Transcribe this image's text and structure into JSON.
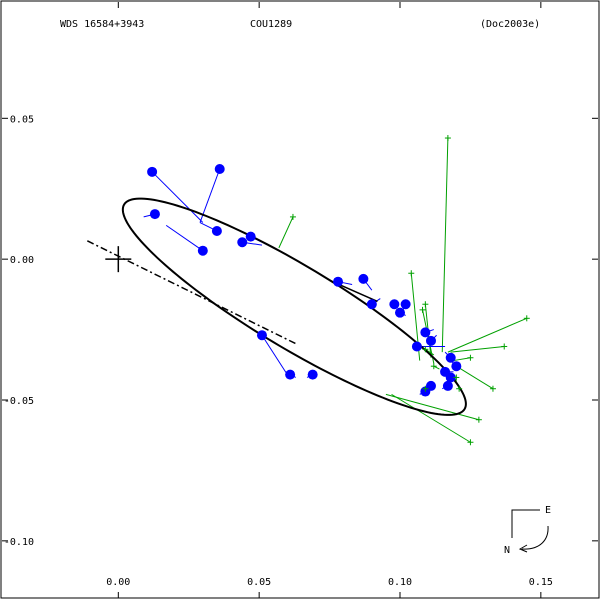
{
  "chart_data": {
    "type": "scatter",
    "header": {
      "left": "WDS 16584+3943",
      "center": "COU1289",
      "right": "(Doc2003e)"
    },
    "xlim": [
      -0.042,
      0.171
    ],
    "ylim": [
      -0.121,
      0.092
    ],
    "x_ticks": [
      {
        "value": 0.0,
        "label": "0.00"
      },
      {
        "value": 0.05,
        "label": "0.05"
      },
      {
        "value": 0.1,
        "label": "0.10"
      },
      {
        "value": 0.15,
        "label": "0.15"
      }
    ],
    "y_ticks": [
      {
        "value": 0.05,
        "label": "0.05"
      },
      {
        "value": 0.0,
        "label": "0.00"
      },
      {
        "value": -0.05,
        "label": "-0.05"
      },
      {
        "value": -0.1,
        "label": "-0.10"
      }
    ],
    "primary": {
      "x": 0.0,
      "y": 0.0
    },
    "orbit": {
      "cx": 0.0625,
      "cy": -0.0169,
      "a": 0.0705,
      "b": 0.0146,
      "angle_deg": 31.0
    },
    "line_of_nodes": {
      "x1": -0.011,
      "y1": 0.0065,
      "x2": 0.063,
      "y2": -0.03
    },
    "periastron_arc": {
      "x1": 0.075,
      "y1": -0.0075,
      "x2": 0.092,
      "y2": -0.015
    },
    "blue_observations": [
      {
        "x": 0.012,
        "y": 0.031,
        "fx": 0.03,
        "fy": 0.013
      },
      {
        "x": 0.036,
        "y": 0.032,
        "fx": 0.029,
        "fy": 0.013
      },
      {
        "x": 0.013,
        "y": 0.016,
        "fx": 0.009,
        "fy": 0.015
      },
      {
        "x": 0.03,
        "y": 0.003,
        "fx": 0.017,
        "fy": 0.012
      },
      {
        "x": 0.035,
        "y": 0.01,
        "fx": 0.029,
        "fy": 0.013
      },
      {
        "x": 0.047,
        "y": 0.008,
        "fx": 0.053,
        "fy": 0.005
      },
      {
        "x": 0.044,
        "y": 0.006,
        "fx": 0.051,
        "fy": 0.005
      },
      {
        "x": 0.078,
        "y": -0.008,
        "fx": 0.083,
        "fy": -0.009
      },
      {
        "x": 0.087,
        "y": -0.007,
        "fx": 0.09,
        "fy": -0.011
      },
      {
        "x": 0.09,
        "y": -0.016,
        "fx": 0.093,
        "fy": -0.014
      },
      {
        "x": 0.098,
        "y": -0.016,
        "fx": 0.099,
        "fy": -0.017
      },
      {
        "x": 0.1,
        "y": -0.019,
        "fx": 0.102,
        "fy": -0.02
      },
      {
        "x": 0.102,
        "y": -0.016,
        "fx": 0.101,
        "fy": -0.018
      },
      {
        "x": 0.109,
        "y": -0.026,
        "fx": 0.112,
        "fy": -0.025
      },
      {
        "x": 0.111,
        "y": -0.029,
        "fx": 0.113,
        "fy": -0.027
      },
      {
        "x": 0.106,
        "y": -0.031,
        "fx": 0.116,
        "fy": -0.031
      },
      {
        "x": 0.118,
        "y": -0.035,
        "fx": 0.116,
        "fy": -0.033
      },
      {
        "x": 0.12,
        "y": -0.038,
        "fx": 0.118,
        "fy": -0.036
      },
      {
        "x": 0.116,
        "y": -0.04,
        "fx": 0.119,
        "fy": -0.04
      },
      {
        "x": 0.118,
        "y": -0.042,
        "fx": 0.118,
        "fy": -0.042
      },
      {
        "x": 0.117,
        "y": -0.045,
        "fx": 0.115,
        "fy": -0.046
      },
      {
        "x": 0.109,
        "y": -0.047,
        "fx": 0.107,
        "fy": -0.048
      },
      {
        "x": 0.111,
        "y": -0.045,
        "fx": 0.11,
        "fy": -0.047
      },
      {
        "x": 0.051,
        "y": -0.027,
        "fx": 0.06,
        "fy": -0.041
      },
      {
        "x": 0.061,
        "y": -0.041,
        "fx": 0.063,
        "fy": -0.042
      },
      {
        "x": 0.069,
        "y": -0.041,
        "fx": 0.067,
        "fy": -0.042
      }
    ],
    "green_observations": [
      {
        "x": 0.062,
        "y": 0.015,
        "fx": 0.057,
        "fy": 0.004
      },
      {
        "x": 0.117,
        "y": 0.043,
        "fx": 0.115,
        "fy": -0.033
      },
      {
        "x": 0.104,
        "y": -0.005,
        "fx": 0.107,
        "fy": -0.036
      },
      {
        "x": 0.109,
        "y": -0.016,
        "fx": 0.111,
        "fy": -0.035
      },
      {
        "x": 0.108,
        "y": -0.018,
        "fx": 0.112,
        "fy": -0.037
      },
      {
        "x": 0.145,
        "y": -0.021,
        "fx": 0.117,
        "fy": -0.033
      },
      {
        "x": 0.137,
        "y": -0.031,
        "fx": 0.118,
        "fy": -0.033
      },
      {
        "x": 0.125,
        "y": -0.035,
        "fx": 0.119,
        "fy": -0.036
      },
      {
        "x": 0.133,
        "y": -0.046,
        "fx": 0.12,
        "fy": -0.038
      },
      {
        "x": 0.109,
        "y": -0.032,
        "fx": 0.112,
        "fy": -0.034
      },
      {
        "x": 0.121,
        "y": -0.046,
        "fx": 0.119,
        "fy": -0.041
      },
      {
        "x": 0.12,
        "y": -0.042,
        "fx": 0.116,
        "fy": -0.041
      },
      {
        "x": 0.109,
        "y": -0.046,
        "fx": 0.109,
        "fy": -0.048
      },
      {
        "x": 0.112,
        "y": -0.038,
        "fx": 0.114,
        "fy": -0.039
      },
      {
        "x": 0.128,
        "y": -0.057,
        "fx": 0.095,
        "fy": -0.048
      },
      {
        "x": 0.125,
        "y": -0.065,
        "fx": 0.097,
        "fy": -0.048
      }
    ],
    "compass": {
      "east_label": "E",
      "north_label": "N"
    }
  }
}
